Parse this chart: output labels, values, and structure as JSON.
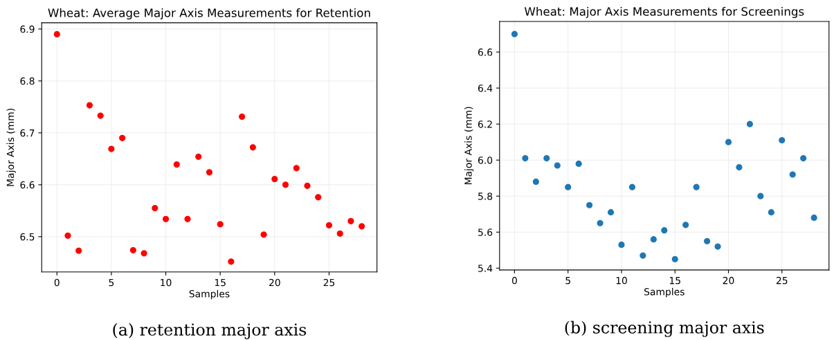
{
  "chart_data": [
    {
      "type": "scatter",
      "title": "Wheat: Average Major Axis Measurements for Retention",
      "xlabel": "Samples",
      "ylabel": "Major Axis (mm)",
      "x": [
        0,
        1,
        2,
        3,
        4,
        5,
        6,
        7,
        8,
        9,
        10,
        11,
        12,
        13,
        14,
        15,
        16,
        17,
        18,
        19,
        20,
        21,
        22,
        23,
        24,
        25,
        26,
        27,
        28
      ],
      "series": [
        {
          "color": "#ff0000",
          "values": [
            6.89,
            6.502,
            6.473,
            6.753,
            6.733,
            6.669,
            6.69,
            6.474,
            6.468,
            6.555,
            6.534,
            6.639,
            6.534,
            6.654,
            6.624,
            6.524,
            6.452,
            6.731,
            6.672,
            6.504,
            6.611,
            6.6,
            6.632,
            6.598,
            6.576,
            6.522,
            6.506,
            6.53,
            6.52
          ]
        }
      ],
      "xlim": [
        -1.4,
        29.4
      ],
      "xticks": [
        0,
        5,
        10,
        15,
        20,
        25
      ],
      "ylim": [
        6.432,
        6.912
      ],
      "yticks": [
        6.5,
        6.6,
        6.7,
        6.8,
        6.9
      ],
      "grid": true,
      "marker": "circle",
      "annotations": [
        "(a) retention major axis"
      ]
    },
    {
      "type": "scatter",
      "title": "Wheat: Major Axis Measurements for Screenings",
      "xlabel": "Samples",
      "ylabel": "Major Axis (mm)",
      "x": [
        0,
        1,
        2,
        3,
        4,
        5,
        6,
        7,
        8,
        9,
        10,
        11,
        12,
        13,
        14,
        15,
        16,
        17,
        18,
        19,
        20,
        21,
        22,
        23,
        24,
        25,
        26,
        27,
        28
      ],
      "series": [
        {
          "color": "#1f77b4",
          "values": [
            6.7,
            6.01,
            5.88,
            6.01,
            5.97,
            5.85,
            5.98,
            5.75,
            5.65,
            5.71,
            5.53,
            5.85,
            5.47,
            5.56,
            5.61,
            5.45,
            5.64,
            5.85,
            5.55,
            5.52,
            6.1,
            5.96,
            6.2,
            5.8,
            5.71,
            6.11,
            5.92,
            6.01,
            5.68
          ]
        }
      ],
      "xlim": [
        -1.4,
        29.4
      ],
      "xticks": [
        0,
        5,
        10,
        15,
        20,
        25
      ],
      "ylim": [
        5.39,
        6.77
      ],
      "yticks": [
        {
          "value": 5.4,
          "label": "5.4"
        },
        {
          "value": 5.6,
          "label": "5.6"
        },
        {
          "value": 5.8,
          "label": "5.8"
        },
        {
          "value": 6.0,
          "label": "6.0"
        },
        {
          "value": 6.2,
          "label": "6.2"
        },
        {
          "value": 6.4,
          "label": "6.4"
        },
        {
          "value": 6.6,
          "label": "6.6"
        }
      ],
      "grid": true,
      "marker": "circle",
      "annotations": [
        "(b) screening major axis"
      ]
    }
  ]
}
